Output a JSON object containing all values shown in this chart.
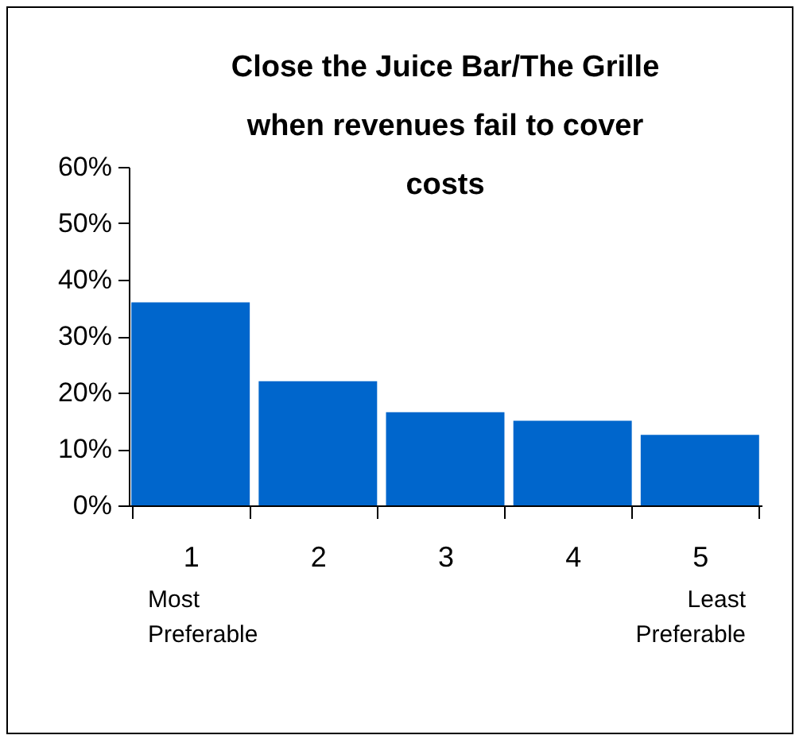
{
  "chart_data": {
    "type": "bar",
    "title": "Close the Juice Bar/The Grille when revenues fail to cover costs",
    "categories": [
      "1",
      "2",
      "3",
      "4",
      "5"
    ],
    "values": [
      36,
      22,
      16.5,
      15,
      12.5
    ],
    "color": "#0066cc",
    "ylim": [
      0,
      60
    ],
    "yticks": [
      {
        "value": 0,
        "label": "0%"
      },
      {
        "value": 10,
        "label": "10%"
      },
      {
        "value": 20,
        "label": "20%"
      },
      {
        "value": 30,
        "label": "30%"
      },
      {
        "value": 40,
        "label": "40%"
      },
      {
        "value": 50,
        "label": "50%"
      },
      {
        "value": 60,
        "label": "60%"
      }
    ],
    "annotations": [
      "Most\nPreferable",
      "Least\nPreferable"
    ],
    "grid": false
  }
}
